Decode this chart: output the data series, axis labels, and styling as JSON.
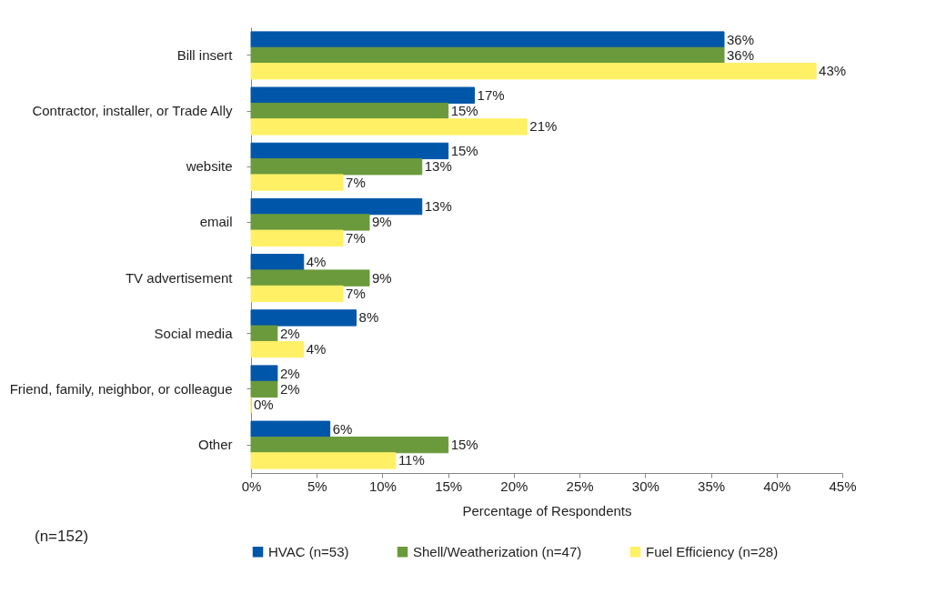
{
  "chart_data": {
    "type": "bar",
    "orientation": "horizontal",
    "xlabel": "Percentage of Respondents",
    "annotations": [
      "(n=152)"
    ],
    "categories": [
      "Bill insert",
      "Contractor, installer, or Trade Ally",
      "website",
      "email",
      "TV advertisement",
      "Social media",
      "Friend, family, neighbor, or colleague",
      "Other"
    ],
    "series": [
      {
        "name": "HVAC (n=53)",
        "color": "#0056a8",
        "values": [
          36,
          17,
          15,
          13,
          4,
          8,
          2,
          6
        ],
        "value_labels": [
          "36%",
          "17%",
          "15%",
          "13%",
          "4%",
          "8%",
          "2%",
          "6%"
        ]
      },
      {
        "name": "Shell/Weatherization (n=47)",
        "color": "#6b9a3c",
        "values": [
          36,
          15,
          13,
          9,
          9,
          2,
          2,
          15
        ],
        "value_labels": [
          "36%",
          "15%",
          "13%",
          "9%",
          "9%",
          "2%",
          "2%",
          "15%"
        ]
      },
      {
        "name": "Fuel Efficiency (n=28)",
        "color": "#fff066",
        "values": [
          43,
          21,
          7,
          7,
          7,
          4,
          0,
          11
        ],
        "value_labels": [
          "43%",
          "21%",
          "7%",
          "7%",
          "7%",
          "4%",
          "0%",
          "11%"
        ]
      }
    ],
    "xlim": [
      0,
      45
    ],
    "xticks": [
      {
        "value": 0,
        "label": "0%"
      },
      {
        "value": 5,
        "label": "5%"
      },
      {
        "value": 10,
        "label": "10%"
      },
      {
        "value": 15,
        "label": "15%"
      },
      {
        "value": 20,
        "label": "20%"
      },
      {
        "value": 25,
        "label": "25%"
      },
      {
        "value": 30,
        "label": "30%"
      },
      {
        "value": 35,
        "label": "35%"
      },
      {
        "value": 40,
        "label": "40%"
      },
      {
        "value": 45,
        "label": "45%"
      }
    ],
    "grid": false,
    "legend": "bottom"
  }
}
